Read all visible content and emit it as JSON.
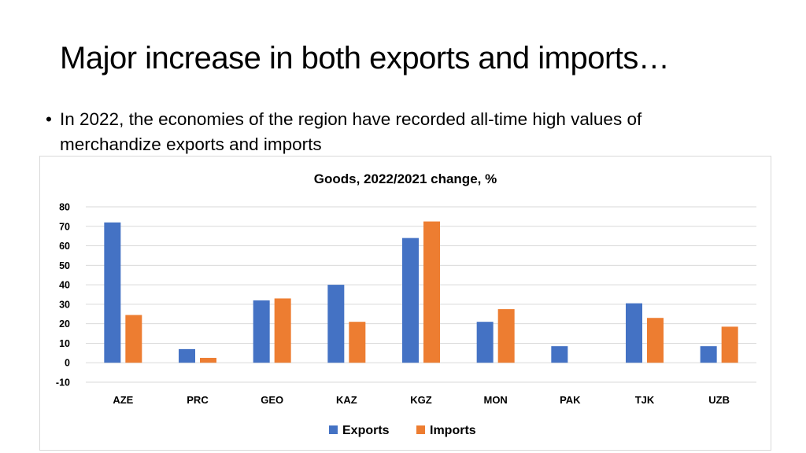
{
  "slide": {
    "title": "Major increase in both exports and imports…",
    "bullet_marker": "•",
    "bullet_text": "In 2022, the economies of the region have recorded all-time high values of merchandize exports and imports"
  },
  "chart_data": {
    "type": "bar",
    "title": "Goods, 2022/2021 change, %",
    "xlabel": "",
    "ylabel": "",
    "categories": [
      "AZE",
      "PRC",
      "GEO",
      "KAZ",
      "KGZ",
      "MON",
      "PAK",
      "TJK",
      "UZB"
    ],
    "series": [
      {
        "name": "Exports",
        "color": "#4472C4",
        "values": [
          72,
          7,
          32,
          40,
          64,
          21,
          8.5,
          30.5,
          8.5
        ]
      },
      {
        "name": "Imports",
        "color": "#ED7D31",
        "values": [
          24.5,
          2.5,
          33,
          21,
          72.5,
          27.5,
          0,
          23,
          18.5
        ]
      }
    ],
    "ylim": [
      -10,
      80
    ],
    "yticks": [
      -10,
      0,
      10,
      20,
      30,
      40,
      50,
      60,
      70,
      80
    ],
    "grid": true,
    "legend_position": "bottom-center"
  }
}
